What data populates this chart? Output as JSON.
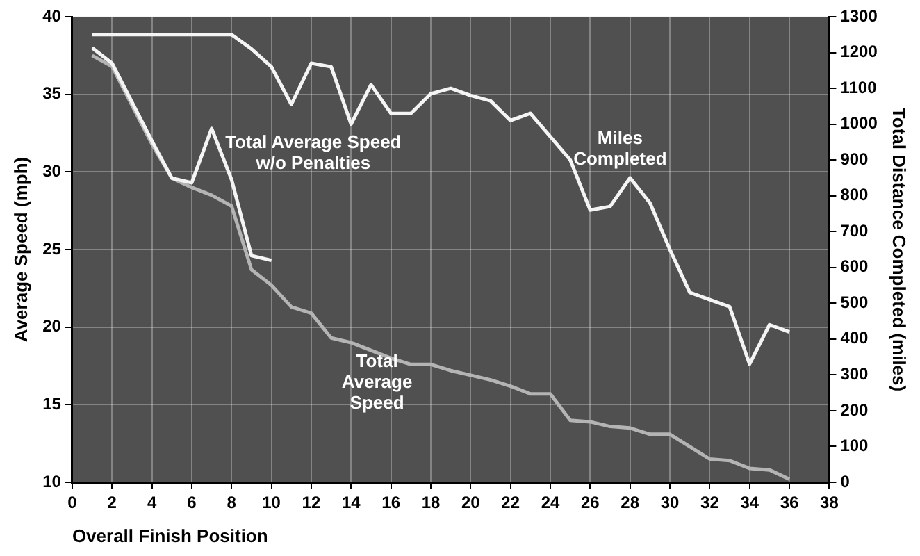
{
  "chart_data": {
    "type": "line",
    "xlabel": "Overall Finish Position",
    "ylabel": "Average Speed (mph)",
    "y2label": "Total Distance Completed (miles)",
    "xlim": [
      0,
      38
    ],
    "xticks": [
      0,
      2,
      4,
      6,
      8,
      10,
      12,
      14,
      16,
      18,
      20,
      22,
      24,
      26,
      28,
      30,
      32,
      34,
      36,
      38
    ],
    "ylim": [
      10,
      40
    ],
    "yticks": [
      10,
      15,
      20,
      25,
      30,
      35,
      40
    ],
    "y2lim": [
      0,
      1300
    ],
    "y2ticks": [
      0,
      100,
      200,
      300,
      400,
      500,
      600,
      700,
      800,
      900,
      1000,
      1100,
      1200,
      1300
    ],
    "grid": true,
    "legend": false,
    "marker": "none",
    "line_style": "solid",
    "series": [
      {
        "name": "Total Average Speed w/o Penalties",
        "color": "#f4f4f4",
        "x": [
          1,
          2,
          3,
          4,
          5,
          6,
          7,
          8,
          9,
          10
        ],
        "values": [
          38.0,
          37.0,
          34.5,
          32.0,
          29.6,
          29.3,
          32.8,
          29.5,
          24.6,
          24.3
        ]
      },
      {
        "name": "Miles Completed",
        "color": "#f4f4f4",
        "axis": "y2",
        "x": [
          1,
          2,
          3,
          4,
          5,
          6,
          7,
          8,
          9,
          10,
          11,
          12,
          13,
          14,
          15,
          16,
          17,
          18,
          19,
          20,
          21,
          22,
          23,
          24,
          25,
          26,
          27,
          28,
          29,
          30,
          31,
          32,
          33,
          34,
          35,
          36
        ],
        "values": [
          1250,
          1250,
          1250,
          1250,
          1250,
          1250,
          1250,
          1250,
          1210,
          1160,
          1055,
          1170,
          1160,
          1000,
          1110,
          1030,
          1030,
          1085,
          1100,
          1080,
          1065,
          1010,
          1030,
          965,
          900,
          760,
          770,
          850,
          780,
          650,
          530,
          510,
          490,
          330,
          440,
          420
        ]
      },
      {
        "name": "Total Average Speed",
        "color": "#b4b4b4",
        "x": [
          1,
          2,
          3,
          4,
          5,
          6,
          7,
          8,
          9,
          10,
          11,
          12,
          13,
          14,
          15,
          16,
          17,
          18,
          19,
          20,
          21,
          22,
          23,
          24,
          25,
          26,
          27,
          28,
          29,
          30,
          31,
          32,
          33,
          34,
          35,
          36
        ],
        "values": [
          37.5,
          36.8,
          34.3,
          31.8,
          29.6,
          29.0,
          28.5,
          27.8,
          23.7,
          22.7,
          21.3,
          20.9,
          19.3,
          19.0,
          18.5,
          18.0,
          17.6,
          17.6,
          17.2,
          16.9,
          16.6,
          16.2,
          15.7,
          15.7,
          14.0,
          13.9,
          13.6,
          13.5,
          13.1,
          13.1,
          12.3,
          11.5,
          11.4,
          10.9,
          10.8,
          10.2
        ]
      }
    ]
  }
}
